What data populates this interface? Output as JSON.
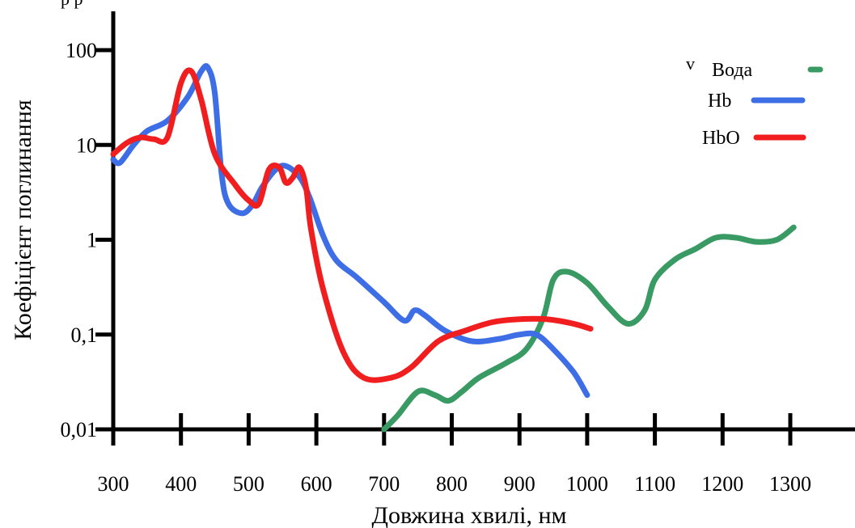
{
  "chart_data": {
    "type": "line",
    "title": "",
    "xlabel": "Довжина хвилі, нм",
    "ylabel": "Коефіцієнт поглинання",
    "yscale": "log",
    "xlim": [
      300,
      1300
    ],
    "ylim": [
      0.01,
      100
    ],
    "x_ticks": [
      300,
      400,
      500,
      600,
      700,
      800,
      900,
      1000,
      1100,
      1200,
      1300
    ],
    "x_tick_labels": [
      "300",
      "400",
      "500",
      "600",
      "700",
      "800",
      "900",
      "1000",
      "1100",
      "1200",
      "1300"
    ],
    "y_ticks": [
      0.01,
      0.1,
      1,
      10,
      100
    ],
    "y_tick_labels": [
      "0,01",
      "0,1",
      "1",
      "10",
      "100"
    ],
    "legend_position": "top-right",
    "stray_mark": "v",
    "series": [
      {
        "name": "Вода",
        "color": "#3a9a63",
        "legend_style": "short-dash",
        "points": [
          [
            700,
            0.01
          ],
          [
            720,
            0.014
          ],
          [
            750,
            0.025
          ],
          [
            775,
            0.023
          ],
          [
            795,
            0.02
          ],
          [
            815,
            0.025
          ],
          [
            840,
            0.035
          ],
          [
            880,
            0.05
          ],
          [
            910,
            0.07
          ],
          [
            935,
            0.15
          ],
          [
            950,
            0.38
          ],
          [
            970,
            0.46
          ],
          [
            1000,
            0.35
          ],
          [
            1030,
            0.2
          ],
          [
            1060,
            0.13
          ],
          [
            1085,
            0.18
          ],
          [
            1100,
            0.38
          ],
          [
            1130,
            0.62
          ],
          [
            1160,
            0.8
          ],
          [
            1190,
            1.05
          ],
          [
            1220,
            1.05
          ],
          [
            1250,
            0.95
          ],
          [
            1280,
            1.0
          ],
          [
            1305,
            1.35
          ]
        ]
      },
      {
        "name": "Hb",
        "color": "#3e6ee6",
        "legend_style": "solid",
        "points": [
          [
            300,
            7
          ],
          [
            310,
            6.5
          ],
          [
            330,
            10
          ],
          [
            350,
            14
          ],
          [
            380,
            18
          ],
          [
            410,
            32
          ],
          [
            430,
            60
          ],
          [
            440,
            65
          ],
          [
            450,
            35
          ],
          [
            460,
            5
          ],
          [
            470,
            2.4
          ],
          [
            490,
            1.9
          ],
          [
            505,
            2.3
          ],
          [
            520,
            3.6
          ],
          [
            540,
            5.5
          ],
          [
            555,
            6
          ],
          [
            575,
            4.6
          ],
          [
            590,
            2.8
          ],
          [
            610,
            1.1
          ],
          [
            630,
            0.6
          ],
          [
            660,
            0.4
          ],
          [
            700,
            0.22
          ],
          [
            730,
            0.14
          ],
          [
            745,
            0.18
          ],
          [
            760,
            0.16
          ],
          [
            790,
            0.11
          ],
          [
            830,
            0.085
          ],
          [
            870,
            0.09
          ],
          [
            900,
            0.1
          ],
          [
            925,
            0.1
          ],
          [
            950,
            0.07
          ],
          [
            980,
            0.04
          ],
          [
            1000,
            0.023
          ]
        ]
      },
      {
        "name": "HbO",
        "color": "#f01e1e",
        "legend_style": "solid",
        "points": [
          [
            300,
            8
          ],
          [
            320,
            10.5
          ],
          [
            340,
            12
          ],
          [
            360,
            11.5
          ],
          [
            380,
            12
          ],
          [
            400,
            45
          ],
          [
            415,
            60
          ],
          [
            430,
            30
          ],
          [
            450,
            8
          ],
          [
            480,
            3.8
          ],
          [
            500,
            2.6
          ],
          [
            515,
            2.4
          ],
          [
            530,
            5.5
          ],
          [
            545,
            5.8
          ],
          [
            555,
            4
          ],
          [
            565,
            4.5
          ],
          [
            575,
            5.8
          ],
          [
            585,
            3.5
          ],
          [
            592,
            1.3
          ],
          [
            610,
            0.3
          ],
          [
            640,
            0.065
          ],
          [
            670,
            0.035
          ],
          [
            710,
            0.035
          ],
          [
            740,
            0.045
          ],
          [
            780,
            0.085
          ],
          [
            820,
            0.11
          ],
          [
            860,
            0.135
          ],
          [
            900,
            0.145
          ],
          [
            940,
            0.145
          ],
          [
            980,
            0.13
          ],
          [
            1005,
            0.115
          ]
        ]
      }
    ]
  }
}
